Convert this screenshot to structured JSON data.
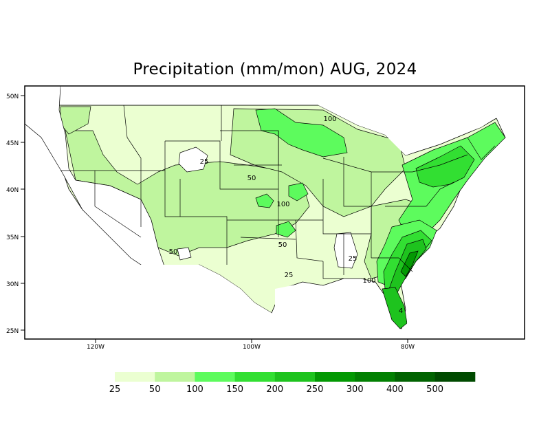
{
  "title": "Precipitation (mm/mon) AUG, 2024",
  "map": {
    "lon_labels": [
      "120W",
      "100W",
      "80W"
    ],
    "lat_labels": [
      "50N",
      "45N",
      "40N",
      "35N",
      "30N",
      "25N"
    ],
    "contour_labels": [
      "100",
      "25",
      "50",
      "100",
      "50",
      "50",
      "25",
      "25",
      "100",
      "4"
    ]
  },
  "legend": {
    "labels": [
      "25",
      "50",
      "100",
      "150",
      "200",
      "250",
      "300",
      "400",
      "500"
    ],
    "colors": [
      "#ebffd1",
      "#bff59e",
      "#5dfb5d",
      "#32df32",
      "#1ec31e",
      "#039903",
      "#028002",
      "#016301",
      "#004a00"
    ]
  },
  "colors": {
    "frame": "#000000",
    "dry": "#ffffff",
    "light_green": "#ebffd1",
    "mid_green": "#bff59e"
  }
}
